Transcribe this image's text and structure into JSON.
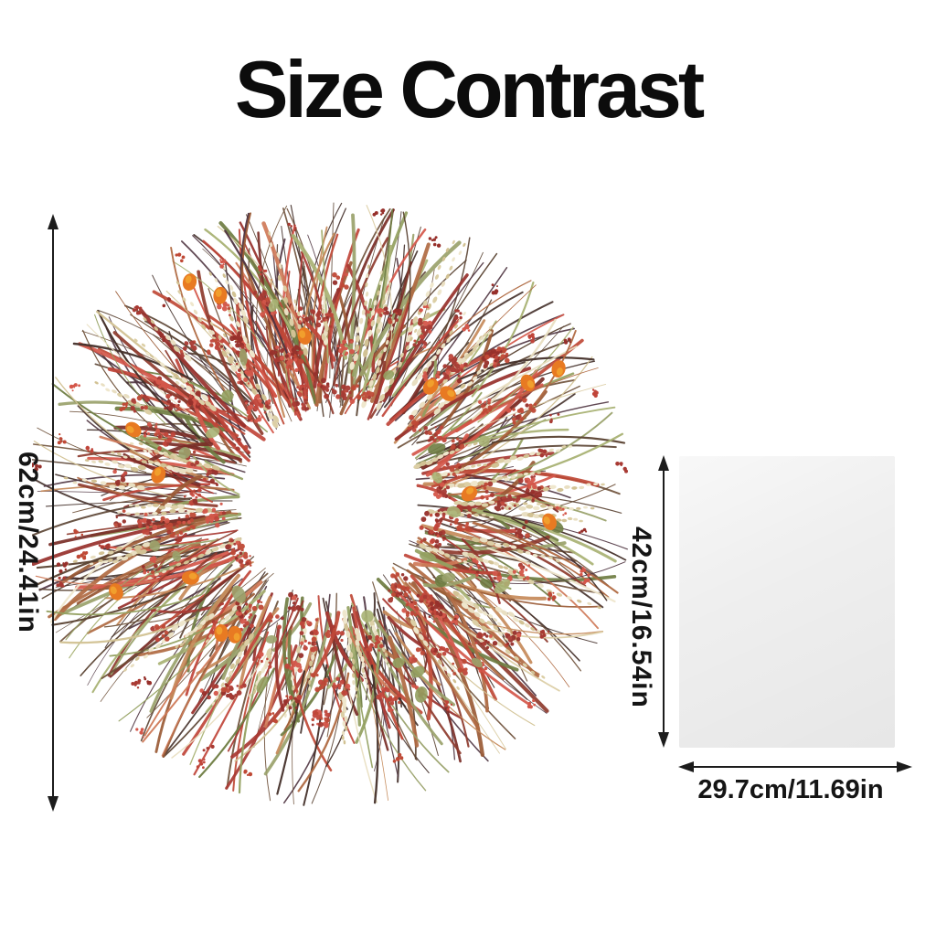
{
  "title": "Size Contrast",
  "background": "#ffffff",
  "text_color": "#151515",
  "arrow_color": "#1c1c1c",
  "wreath": {
    "description": "dried autumn wreath product photo",
    "height_label": "62cm/24.41in",
    "palette": {
      "twig": [
        "#5a4232",
        "#4f3440",
        "#6e5038",
        "#44302a"
      ],
      "cream": [
        "#e9dfc2",
        "#dccfa6",
        "#efe7cd",
        "#d2c294"
      ],
      "red": [
        "#c0453a",
        "#a83a33",
        "#d4574a",
        "#97302b",
        "#bf4936"
      ],
      "green": [
        "#93a060",
        "#6f7d42",
        "#a9b274",
        "#9aa26b"
      ],
      "rust": [
        "#b06a42",
        "#c58a5a",
        "#cf7a58",
        "#9a5a35"
      ],
      "maroon": [
        "#7a2e27",
        "#8e3b2e"
      ],
      "orange": [
        "#e87a22",
        "#f2a62f"
      ]
    }
  },
  "paper": {
    "description": "plain paper sheet for size comparison",
    "fill": "#efefef",
    "height_label": "42cm/16.54in",
    "width_label": "29.7cm/11.69in"
  }
}
